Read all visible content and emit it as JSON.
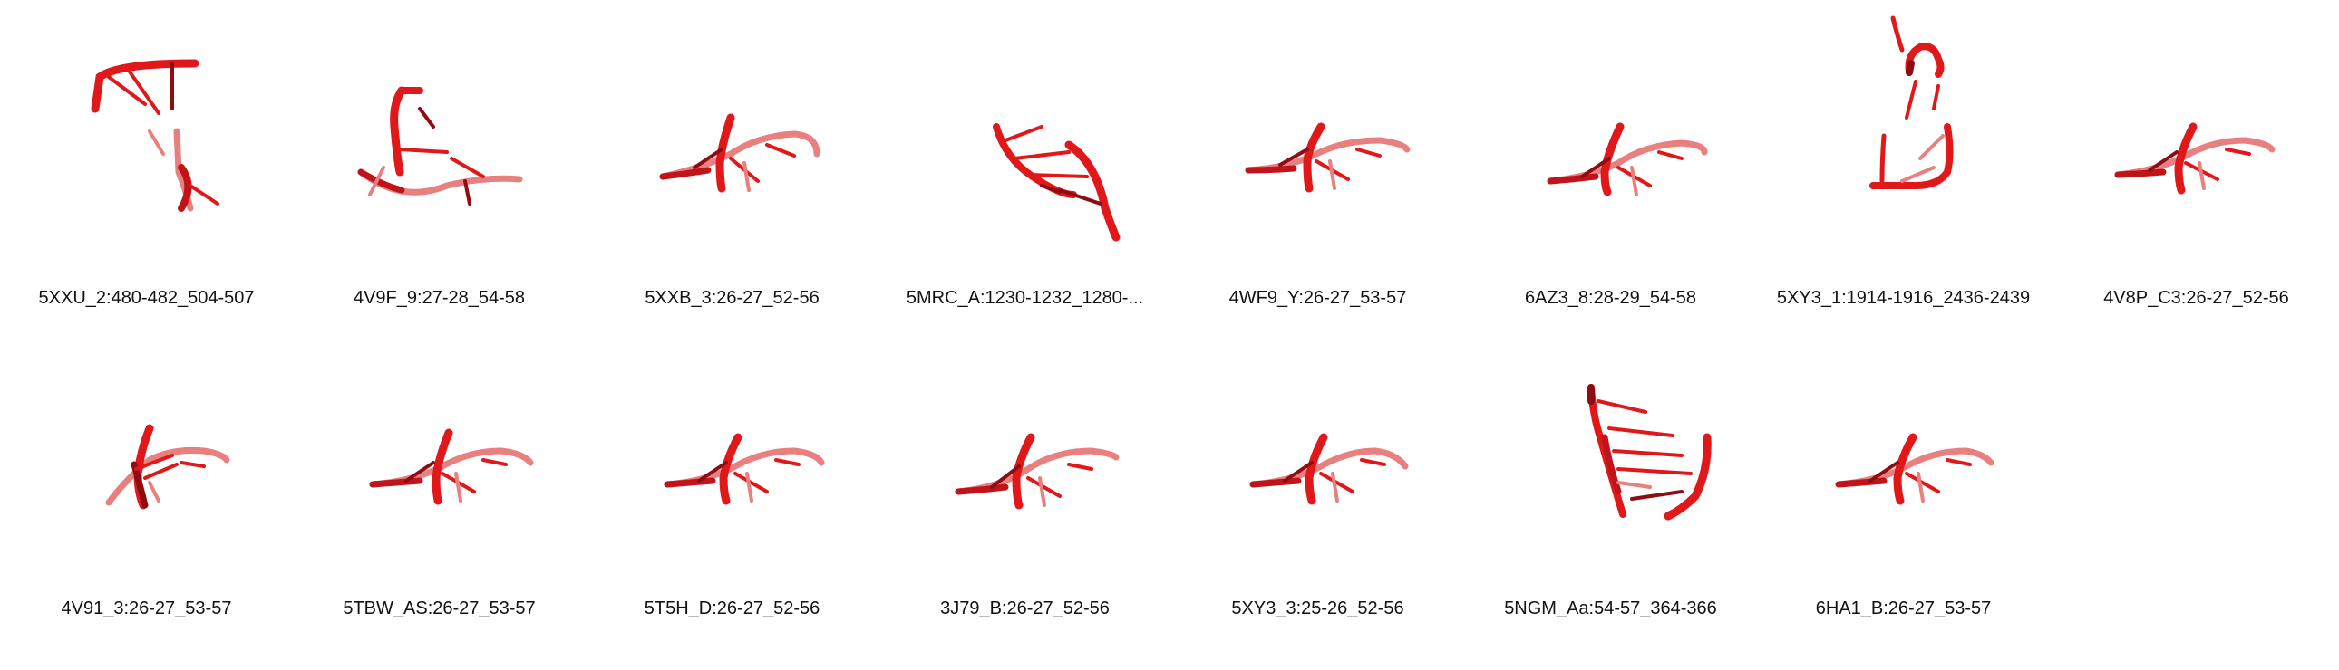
{
  "colors": {
    "strand": "#e0181a",
    "strand_light": "#e98080",
    "strand_dark": "#8e0d12",
    "label": "#111111"
  },
  "panels": [
    {
      "label": "5XXU_2:480-482_504-507",
      "motif": "hairpin"
    },
    {
      "label": "4V9F_9:27-28_54-58",
      "motif": "hook"
    },
    {
      "label": "5XXB_3:26-27_52-56",
      "motif": "kink"
    },
    {
      "label": "5MRC_A:1230-1232_1280-...",
      "motif": "helix"
    },
    {
      "label": "4WF9_Y:26-27_53-57",
      "motif": "kink"
    },
    {
      "label": "6AZ3_8:28-29_54-58",
      "motif": "kink"
    },
    {
      "label": "5XY3_1:1914-1916_2436-2439",
      "motif": "loop"
    },
    {
      "label": "4V8P_C3:26-27_52-56",
      "motif": "kink"
    },
    {
      "label": "4V91_3:26-27_53-57",
      "motif": "kink"
    },
    {
      "label": "5TBW_AS:26-27_53-57",
      "motif": "kink"
    },
    {
      "label": "5T5H_D:26-27_52-56",
      "motif": "kink"
    },
    {
      "label": "3J79_B:26-27_52-56",
      "motif": "kink"
    },
    {
      "label": "5XY3_3:25-26_52-56",
      "motif": "kink"
    },
    {
      "label": "5NGM_Aa:54-57_364-366",
      "motif": "helix"
    },
    {
      "label": "6HA1_B:26-27_53-57",
      "motif": "kink"
    }
  ]
}
